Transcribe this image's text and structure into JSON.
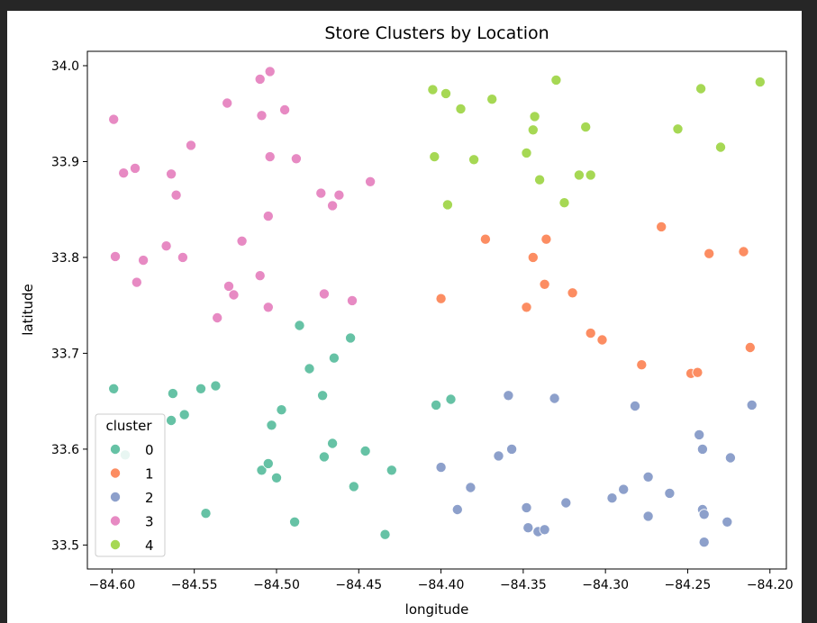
{
  "chart_data": {
    "type": "scatter",
    "title": "Store Clusters by Location",
    "xlabel": "longitude",
    "ylabel": "latitude",
    "xlim": [
      -84.615,
      -84.19
    ],
    "ylim": [
      33.475,
      34.015
    ],
    "xticks": [
      -84.6,
      -84.55,
      -84.5,
      -84.45,
      -84.4,
      -84.35,
      -84.3,
      -84.25,
      -84.2
    ],
    "xtick_labels": [
      "−84.60",
      "−84.55",
      "−84.50",
      "−84.45",
      "−84.40",
      "−84.35",
      "−84.30",
      "−84.25",
      "−84.20"
    ],
    "yticks": [
      33.5,
      33.6,
      33.7,
      33.8,
      33.9,
      34.0
    ],
    "ytick_labels": [
      "33.5",
      "33.6",
      "33.7",
      "33.8",
      "33.9",
      "34.0"
    ],
    "grid": false,
    "legend": {
      "title": "cluster",
      "placement": "lower-left"
    },
    "series": [
      {
        "name": "0",
        "color": "#66c2a5",
        "points": [
          [
            -84.599,
            33.663
          ],
          [
            -84.592,
            33.594
          ],
          [
            -84.563,
            33.658
          ],
          [
            -84.564,
            33.63
          ],
          [
            -84.556,
            33.636
          ],
          [
            -84.546,
            33.663
          ],
          [
            -84.537,
            33.666
          ],
          [
            -84.543,
            33.533
          ],
          [
            -84.509,
            33.578
          ],
          [
            -84.505,
            33.585
          ],
          [
            -84.503,
            33.625
          ],
          [
            -84.5,
            33.57
          ],
          [
            -84.497,
            33.641
          ],
          [
            -84.489,
            33.524
          ],
          [
            -84.486,
            33.729
          ],
          [
            -84.48,
            33.684
          ],
          [
            -84.472,
            33.656
          ],
          [
            -84.471,
            33.592
          ],
          [
            -84.466,
            33.606
          ],
          [
            -84.465,
            33.695
          ],
          [
            -84.455,
            33.716
          ],
          [
            -84.453,
            33.561
          ],
          [
            -84.446,
            33.598
          ],
          [
            -84.434,
            33.511
          ],
          [
            -84.43,
            33.578
          ],
          [
            -84.403,
            33.646
          ],
          [
            -84.394,
            33.652
          ]
        ]
      },
      {
        "name": "1",
        "color": "#fc8d62",
        "points": [
          [
            -84.4,
            33.757
          ],
          [
            -84.373,
            33.819
          ],
          [
            -84.348,
            33.748
          ],
          [
            -84.344,
            33.8
          ],
          [
            -84.337,
            33.772
          ],
          [
            -84.336,
            33.819
          ],
          [
            -84.32,
            33.763
          ],
          [
            -84.309,
            33.721
          ],
          [
            -84.302,
            33.714
          ],
          [
            -84.278,
            33.688
          ],
          [
            -84.266,
            33.832
          ],
          [
            -84.248,
            33.679
          ],
          [
            -84.244,
            33.68
          ],
          [
            -84.237,
            33.804
          ],
          [
            -84.216,
            33.806
          ],
          [
            -84.212,
            33.706
          ]
        ]
      },
      {
        "name": "2",
        "color": "#8da0cb",
        "points": [
          [
            -84.4,
            33.581
          ],
          [
            -84.39,
            33.537
          ],
          [
            -84.382,
            33.56
          ],
          [
            -84.365,
            33.593
          ],
          [
            -84.359,
            33.656
          ],
          [
            -84.357,
            33.6
          ],
          [
            -84.348,
            33.539
          ],
          [
            -84.347,
            33.518
          ],
          [
            -84.341,
            33.514
          ],
          [
            -84.337,
            33.516
          ],
          [
            -84.331,
            33.653
          ],
          [
            -84.324,
            33.544
          ],
          [
            -84.296,
            33.549
          ],
          [
            -84.289,
            33.558
          ],
          [
            -84.282,
            33.645
          ],
          [
            -84.274,
            33.571
          ],
          [
            -84.274,
            33.53
          ],
          [
            -84.261,
            33.554
          ],
          [
            -84.243,
            33.615
          ],
          [
            -84.241,
            33.6
          ],
          [
            -84.241,
            33.537
          ],
          [
            -84.24,
            33.532
          ],
          [
            -84.24,
            33.503
          ],
          [
            -84.226,
            33.524
          ],
          [
            -84.224,
            33.591
          ],
          [
            -84.211,
            33.646
          ]
        ]
      },
      {
        "name": "3",
        "color": "#e78ac3",
        "points": [
          [
            -84.599,
            33.944
          ],
          [
            -84.598,
            33.801
          ],
          [
            -84.593,
            33.888
          ],
          [
            -84.586,
            33.893
          ],
          [
            -84.585,
            33.774
          ],
          [
            -84.581,
            33.797
          ],
          [
            -84.567,
            33.812
          ],
          [
            -84.564,
            33.887
          ],
          [
            -84.561,
            33.865
          ],
          [
            -84.557,
            33.8
          ],
          [
            -84.552,
            33.917
          ],
          [
            -84.536,
            33.737
          ],
          [
            -84.53,
            33.961
          ],
          [
            -84.529,
            33.77
          ],
          [
            -84.526,
            33.761
          ],
          [
            -84.521,
            33.817
          ],
          [
            -84.51,
            33.986
          ],
          [
            -84.51,
            33.781
          ],
          [
            -84.509,
            33.948
          ],
          [
            -84.505,
            33.843
          ],
          [
            -84.505,
            33.748
          ],
          [
            -84.504,
            33.994
          ],
          [
            -84.504,
            33.905
          ],
          [
            -84.495,
            33.954
          ],
          [
            -84.488,
            33.903
          ],
          [
            -84.473,
            33.867
          ],
          [
            -84.471,
            33.762
          ],
          [
            -84.466,
            33.854
          ],
          [
            -84.462,
            33.865
          ],
          [
            -84.454,
            33.755
          ],
          [
            -84.443,
            33.879
          ]
        ]
      },
      {
        "name": "4",
        "color": "#a6d854",
        "points": [
          [
            -84.405,
            33.975
          ],
          [
            -84.404,
            33.905
          ],
          [
            -84.397,
            33.971
          ],
          [
            -84.396,
            33.855
          ],
          [
            -84.388,
            33.955
          ],
          [
            -84.38,
            33.902
          ],
          [
            -84.369,
            33.965
          ],
          [
            -84.348,
            33.909
          ],
          [
            -84.344,
            33.933
          ],
          [
            -84.343,
            33.947
          ],
          [
            -84.34,
            33.881
          ],
          [
            -84.33,
            33.985
          ],
          [
            -84.325,
            33.857
          ],
          [
            -84.316,
            33.886
          ],
          [
            -84.312,
            33.936
          ],
          [
            -84.309,
            33.886
          ],
          [
            -84.256,
            33.934
          ],
          [
            -84.242,
            33.976
          ],
          [
            -84.23,
            33.915
          ],
          [
            -84.206,
            33.983
          ]
        ]
      }
    ]
  }
}
